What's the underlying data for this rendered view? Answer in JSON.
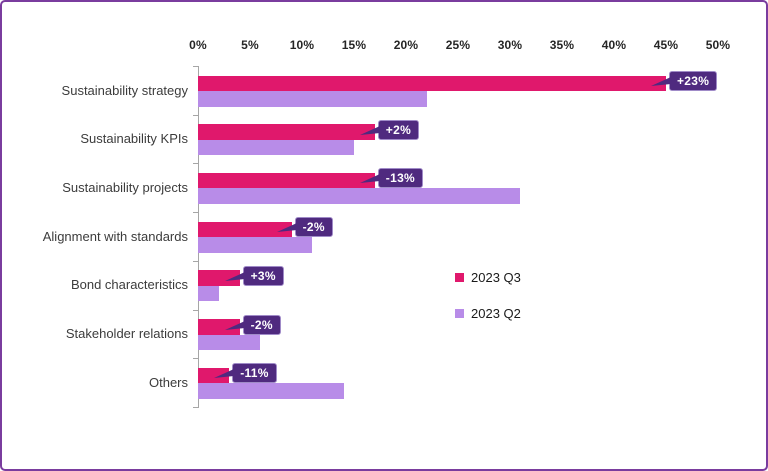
{
  "colors": {
    "frame_border": "#7A3C9E",
    "series_q3": "#E0186C",
    "series_q2": "#B88CE8",
    "badge_background": "#4F2A7F",
    "badge_border": "#A08BC8",
    "axis_line": "#A6A6A6"
  },
  "chart_data": {
    "type": "bar",
    "orientation": "horizontal",
    "title": "",
    "xlabel": "",
    "ylabel": "",
    "xlim": [
      0,
      50
    ],
    "grid": false,
    "legend_position": "middle-right",
    "x_tick_labels": [
      "0%",
      "5%",
      "10%",
      "15%",
      "20%",
      "25%",
      "30%",
      "35%",
      "40%",
      "45%",
      "50%"
    ],
    "categories": [
      "Sustainability strategy",
      "Sustainability KPIs",
      "Sustainability projects",
      "Alignment with standards",
      "Bond characteristics",
      "Stakeholder relations",
      "Others"
    ],
    "series": [
      {
        "name": "2023 Q3",
        "color": "#E0186C",
        "values": [
          45,
          17,
          17,
          9,
          4,
          4,
          3
        ]
      },
      {
        "name": "2023 Q2",
        "color": "#B88CE8",
        "values": [
          22,
          15,
          31,
          11,
          2,
          6,
          14
        ]
      }
    ],
    "callouts": [
      "+23%",
      "+2%",
      "-13%",
      "-2%",
      "+3%",
      "-2%",
      "-11%"
    ]
  },
  "legend": {
    "items": [
      {
        "label": "2023 Q3"
      },
      {
        "label": "2023 Q2"
      }
    ]
  }
}
